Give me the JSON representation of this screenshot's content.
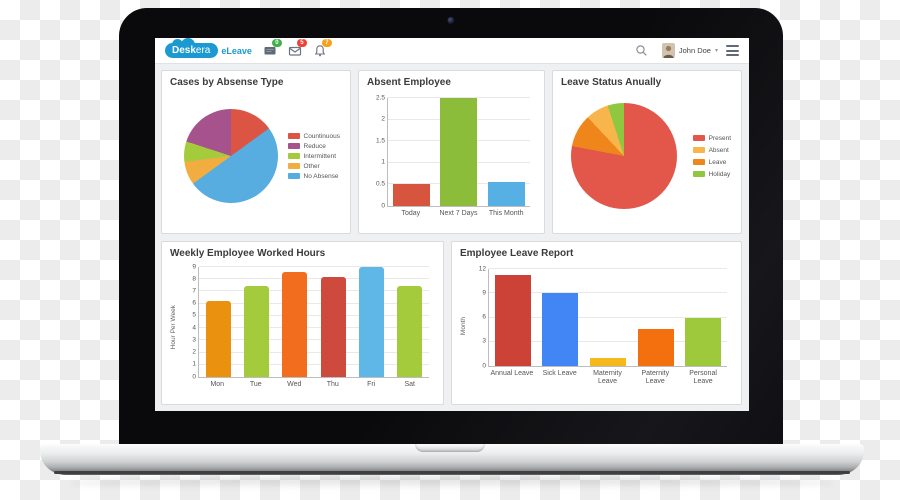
{
  "header": {
    "brand": {
      "bold": "Desk",
      "rest": "era",
      "product": "eLeave"
    },
    "notifications": [
      {
        "icon": "messages-icon",
        "count": "0",
        "badge_color": "#43b14b"
      },
      {
        "icon": "mail-icon",
        "count": "5",
        "badge_color": "#ef4136"
      },
      {
        "icon": "bell-icon",
        "count": "7",
        "badge_color": "#f7a11a"
      }
    ],
    "user": {
      "name": "John Doe"
    }
  },
  "chart_data": [
    {
      "type": "pie",
      "title": "Cases by Absense Type",
      "slices": [
        {
          "label": "Countinuous",
          "value": 15,
          "color": "#dc5544"
        },
        {
          "label": "No Absense",
          "value": 50,
          "color": "#57ace0"
        },
        {
          "label": "Other",
          "value": 8,
          "color": "#f2ad41"
        },
        {
          "label": "Intermittent",
          "value": 7,
          "color": "#a4cb3c"
        },
        {
          "label": "Reduce",
          "value": 20,
          "color": "#a6538d"
        }
      ],
      "legend_order": [
        "Countinuous",
        "Reduce",
        "Intermittent",
        "Other",
        "No Absense"
      ],
      "legend_position": "right"
    },
    {
      "type": "bar",
      "title": "Absent Employee",
      "categories": [
        "Today",
        "Next 7 Days",
        "This Month"
      ],
      "values": [
        0.5,
        2.5,
        0.55
      ],
      "colors": [
        "#d7553f",
        "#8cbd3a",
        "#57b0e3"
      ],
      "ylim": [
        0,
        2.5
      ],
      "yticks": [
        0,
        0.5,
        1,
        1.5,
        2,
        2.5
      ],
      "ylabel": ""
    },
    {
      "type": "pie",
      "title": "Leave Status Anually",
      "slices": [
        {
          "label": "Present",
          "value": 78,
          "color": "#e2574a"
        },
        {
          "label": "Leave",
          "value": 10,
          "color": "#ef861b"
        },
        {
          "label": "Absent",
          "value": 7,
          "color": "#f8b54b"
        },
        {
          "label": "Holiday",
          "value": 5,
          "color": "#8fc740"
        }
      ],
      "legend_order": [
        "Present",
        "Absent",
        "Leave",
        "Holiday"
      ],
      "legend_position": "right"
    },
    {
      "type": "bar",
      "title": "Weekly Employee Worked Hours",
      "categories": [
        "Mon",
        "Tue",
        "Wed",
        "Thu",
        "Fri",
        "Sat"
      ],
      "values": [
        6.2,
        7.45,
        8.6,
        8.2,
        9,
        7.45
      ],
      "colors": [
        "#ea9210",
        "#a4cb3c",
        "#f36d1f",
        "#ce4a3d",
        "#5fb7e8",
        "#a4cb3c"
      ],
      "ylim": [
        0,
        9
      ],
      "yticks": [
        0,
        1,
        2,
        3,
        4,
        5,
        6,
        7,
        8,
        9
      ],
      "ylabel": "Hour Per Week"
    },
    {
      "type": "bar",
      "title": "Employee Leave Report",
      "categories": [
        "Annual Leave",
        "Sick Leave",
        "Maternity Leave",
        "Paternity Leave",
        "Personal Leave"
      ],
      "values": [
        11.3,
        9,
        1,
        4.6,
        6
      ],
      "colors": [
        "#cc4237",
        "#4286f5",
        "#f6b91c",
        "#f46f0e",
        "#9fc93c"
      ],
      "ylim": [
        0,
        12
      ],
      "yticks": [
        0,
        3,
        6,
        9,
        12
      ],
      "ylabel": "Month"
    }
  ]
}
